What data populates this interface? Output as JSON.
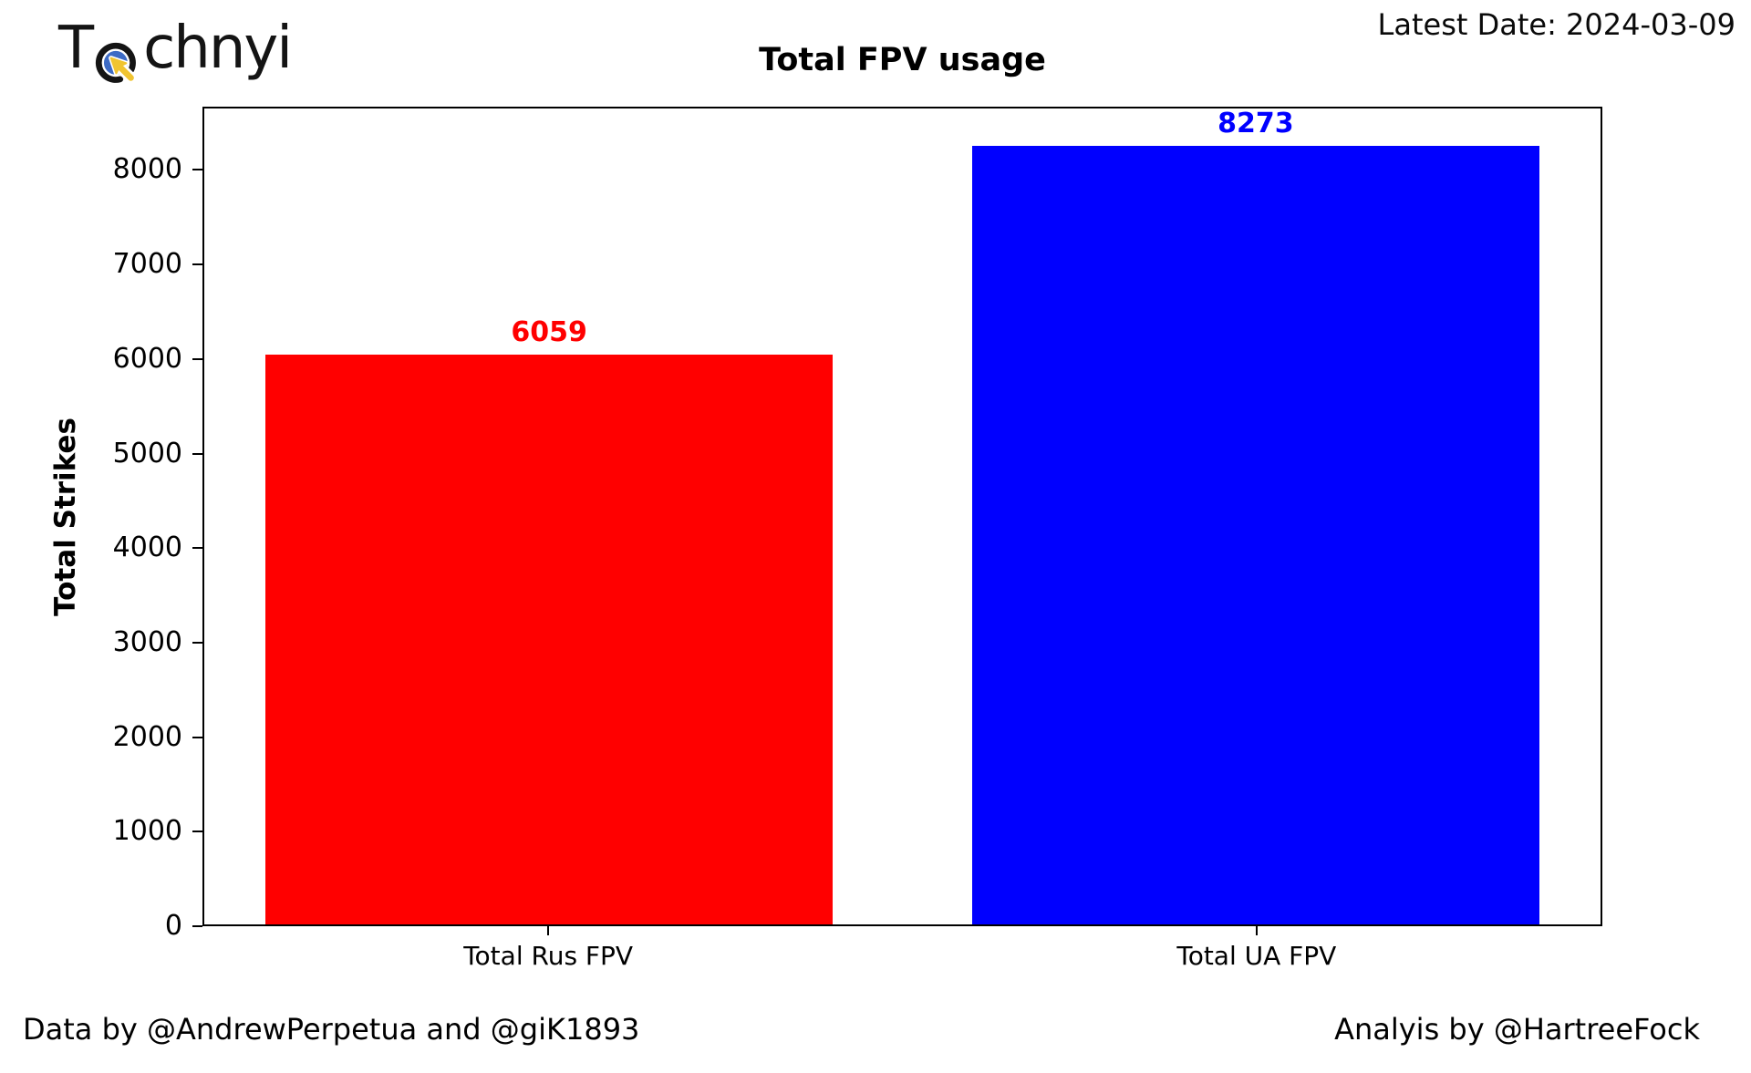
{
  "logo": {
    "text_prefix": "T",
    "text_suffix": "chnyi",
    "icon": "cursor-click-icon",
    "ring_color": "#141414",
    "inner_color": "#3d6bc5",
    "cursor_color": "#f0c431"
  },
  "header": {
    "latest_date": "Latest Date: 2024-03-09"
  },
  "chart_data": {
    "type": "bar",
    "title": "Total FPV usage",
    "ylabel": "Total Strikes",
    "xlabel": "",
    "categories": [
      "Total Rus FPV",
      "Total UA FPV"
    ],
    "values": [
      6059,
      8273
    ],
    "bar_colors": [
      "#ff0000",
      "#0000ff"
    ],
    "value_label_colors": [
      "#ff0000",
      "#0000ff"
    ],
    "ylim": [
      0,
      8670
    ],
    "yticks": [
      0,
      1000,
      2000,
      3000,
      4000,
      5000,
      6000,
      7000,
      8000
    ],
    "grid": false,
    "legend": null
  },
  "footer": {
    "left": "Data by @AndrewPerpetua and @giK1893",
    "right": "Analyis by @HartreeFock"
  }
}
